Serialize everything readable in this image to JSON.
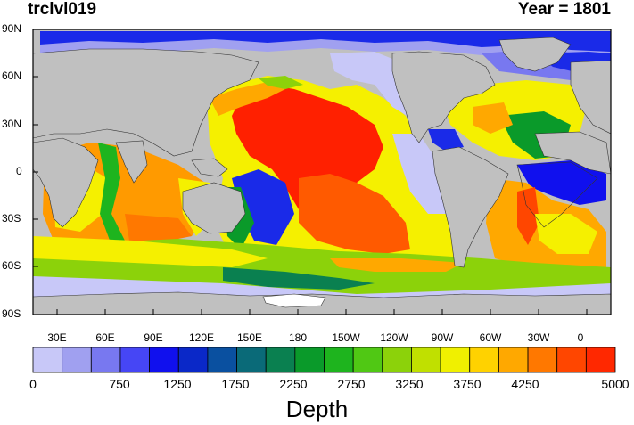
{
  "header": {
    "variable": "trclvl019",
    "year_text": "Year = 1801"
  },
  "chart_data": {
    "type": "heatmap",
    "title_left": "trclvl019",
    "title_right": "Year = 1801",
    "lat_ticks": [
      "90N",
      "60N",
      "30N",
      "0",
      "30S",
      "60S",
      "90S"
    ],
    "lon_ticks": [
      "30E",
      "60E",
      "90E",
      "120E",
      "150E",
      "180",
      "150W",
      "120W",
      "90W",
      "60W",
      "30W",
      "0"
    ],
    "colorbar": {
      "title": "Depth",
      "range": [
        0,
        5000
      ],
      "labels": [
        "0",
        "750",
        "1250",
        "1750",
        "2250",
        "2750",
        "3250",
        "3750",
        "4250",
        "5000"
      ],
      "colors": [
        "#c8c8f8",
        "#a0a0f0",
        "#7878f0",
        "#4646f5",
        "#1010ee",
        "#0a28c8",
        "#0a50a0",
        "#0a6a78",
        "#0a8050",
        "#0a9a2a",
        "#1eb41e",
        "#50c814",
        "#8cd20a",
        "#c0e000",
        "#f0f000",
        "#ffd200",
        "#ffa800",
        "#ff7800",
        "#ff4600",
        "#ff2800"
      ]
    },
    "land_color": "#c0c0c0",
    "ice_color": "#ffffff"
  }
}
